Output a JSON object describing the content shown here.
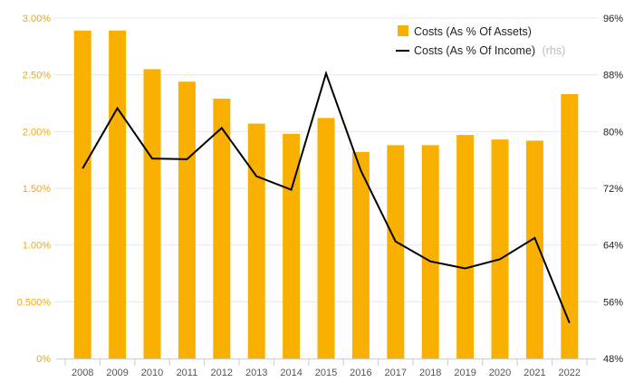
{
  "chart_data": {
    "type": "bar",
    "categories": [
      "2008",
      "2009",
      "2010",
      "2011",
      "2012",
      "2013",
      "2014",
      "2015",
      "2016",
      "2017",
      "2018",
      "2019",
      "2020",
      "2021",
      "2022"
    ],
    "series": [
      {
        "name": "Costs (As % Of Assets)",
        "type": "bar",
        "axis": "left",
        "values": [
          2.89,
          2.89,
          2.55,
          2.44,
          2.29,
          2.07,
          1.98,
          2.12,
          1.82,
          1.88,
          1.88,
          1.97,
          1.93,
          1.92,
          2.33
        ]
      },
      {
        "name": "Costs (As % Of Income)",
        "name_suffix": "(rhs)",
        "type": "line",
        "axis": "right",
        "values": [
          74.8,
          83.3,
          76.2,
          76.1,
          80.5,
          73.7,
          71.8,
          88.2,
          74.5,
          64.5,
          61.7,
          60.7,
          62.0,
          65.0,
          53.0
        ]
      }
    ],
    "left_axis": {
      "ticks": [
        0,
        0.5,
        1.0,
        1.5,
        2.0,
        2.5,
        3.0
      ],
      "tick_labels": [
        "0%",
        "0.500%",
        "1.00%",
        "1.50%",
        "2.00%",
        "2.50%",
        "3.00%"
      ],
      "range": [
        0,
        3.0
      ]
    },
    "right_axis": {
      "ticks": [
        48,
        56,
        64,
        72,
        80,
        88,
        96
      ],
      "tick_labels": [
        "48%",
        "56%",
        "64%",
        "72%",
        "80%",
        "88%",
        "96%"
      ],
      "range": [
        48,
        96
      ]
    },
    "grid": true,
    "legend_position": "top-right",
    "colors": {
      "bar": "#f9b000",
      "line": "#000000",
      "left_tick": "#f2a900",
      "grid": "#e8e8e8"
    }
  }
}
